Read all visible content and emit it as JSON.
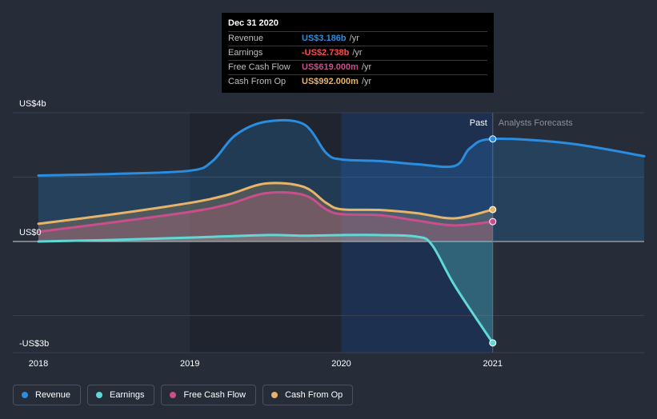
{
  "chart_data": {
    "type": "area",
    "y_axis_labels": [
      "US$4b",
      "US$0",
      "-US$3b"
    ],
    "ylim": [
      -3.0,
      4.0
    ],
    "x_ticks": [
      "2018",
      "2019",
      "2020",
      "2021"
    ],
    "past_label": "Past",
    "forecast_label": "Analysts Forecasts",
    "series": [
      {
        "name": "Revenue",
        "color": "#2a8de0",
        "points": [
          [
            2018.0,
            2.05
          ],
          [
            2018.5,
            2.1
          ],
          [
            2019.0,
            2.2
          ],
          [
            2019.15,
            2.5
          ],
          [
            2019.3,
            3.3
          ],
          [
            2019.5,
            3.72
          ],
          [
            2019.75,
            3.65
          ],
          [
            2019.9,
            2.75
          ],
          [
            2020.0,
            2.55
          ],
          [
            2020.25,
            2.5
          ],
          [
            2020.5,
            2.4
          ],
          [
            2020.75,
            2.35
          ],
          [
            2020.85,
            2.9
          ],
          [
            2021.0,
            3.186
          ],
          [
            2021.5,
            3.05
          ],
          [
            2022.0,
            2.65
          ]
        ]
      },
      {
        "name": "Earnings",
        "color": "#5fd9d6",
        "points": [
          [
            2018.0,
            0.0
          ],
          [
            2018.5,
            0.05
          ],
          [
            2019.0,
            0.12
          ],
          [
            2019.5,
            0.2
          ],
          [
            2019.75,
            0.18
          ],
          [
            2020.0,
            0.2
          ],
          [
            2020.25,
            0.2
          ],
          [
            2020.5,
            0.15
          ],
          [
            2020.6,
            -0.1
          ],
          [
            2020.75,
            -1.2
          ],
          [
            2021.0,
            -2.738
          ]
        ]
      },
      {
        "name": "Free Cash Flow",
        "color": "#c94f8c",
        "points": [
          [
            2018.0,
            0.3
          ],
          [
            2018.5,
            0.6
          ],
          [
            2019.0,
            0.92
          ],
          [
            2019.25,
            1.15
          ],
          [
            2019.5,
            1.5
          ],
          [
            2019.75,
            1.45
          ],
          [
            2019.9,
            1.0
          ],
          [
            2020.0,
            0.85
          ],
          [
            2020.25,
            0.82
          ],
          [
            2020.5,
            0.65
          ],
          [
            2020.75,
            0.5
          ],
          [
            2021.0,
            0.619
          ]
        ]
      },
      {
        "name": "Cash From Op",
        "color": "#e8b46a",
        "points": [
          [
            2018.0,
            0.55
          ],
          [
            2018.5,
            0.85
          ],
          [
            2019.0,
            1.2
          ],
          [
            2019.25,
            1.45
          ],
          [
            2019.5,
            1.8
          ],
          [
            2019.75,
            1.7
          ],
          [
            2019.9,
            1.2
          ],
          [
            2020.0,
            1.0
          ],
          [
            2020.25,
            0.98
          ],
          [
            2020.5,
            0.88
          ],
          [
            2020.75,
            0.72
          ],
          [
            2021.0,
            0.992
          ]
        ]
      }
    ]
  },
  "tooltip": {
    "date": "Dec 31 2020",
    "rows": [
      {
        "label": "Revenue",
        "value": "US$3.186b",
        "unit": "/yr",
        "color": "#2a8de0"
      },
      {
        "label": "Earnings",
        "value": "-US$2.738b",
        "unit": "/yr",
        "color": "#ff4d4d"
      },
      {
        "label": "Free Cash Flow",
        "value": "US$619.000m",
        "unit": "/yr",
        "color": "#c94f8c"
      },
      {
        "label": "Cash From Op",
        "value": "US$992.000m",
        "unit": "/yr",
        "color": "#e8b46a"
      }
    ]
  },
  "legend": [
    {
      "label": "Revenue",
      "color": "#2a8de0"
    },
    {
      "label": "Earnings",
      "color": "#5fd9d6"
    },
    {
      "label": "Free Cash Flow",
      "color": "#c94f8c"
    },
    {
      "label": "Cash From Op",
      "color": "#e8b46a"
    }
  ]
}
